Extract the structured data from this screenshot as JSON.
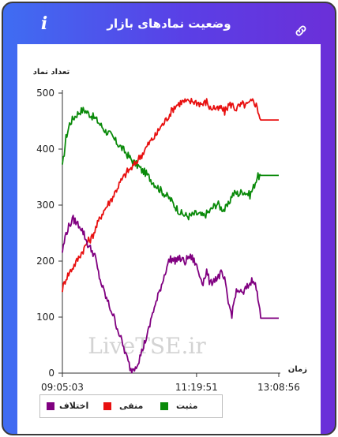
{
  "header": {
    "title": "وضعیت نمادهای بازار",
    "info_icon": "i",
    "link_icon": "link-icon"
  },
  "watermark": "LiveTSE.ir",
  "colors": {
    "positive": "#0a8a0a",
    "negative": "#e81010",
    "difference": "#800080"
  },
  "chart_data": {
    "type": "line",
    "ylabel": "تعداد نماد",
    "xlabel": "زمان",
    "ylim": [
      0,
      500
    ],
    "yticks": [
      0,
      100,
      200,
      300,
      400,
      500
    ],
    "x_range": [
      "09:05:03",
      "13:08:56"
    ],
    "xtick_labels": [
      "09:05:03",
      "11:19:51",
      "13:08:56"
    ],
    "grid": false,
    "legend_position": "bottom-left",
    "series": [
      {
        "name": "مثبت",
        "color": "#0a8a0a",
        "values": [
          367,
          420,
          445,
          455,
          462,
          468,
          470,
          465,
          460,
          455,
          448,
          440,
          432,
          428,
          420,
          412,
          405,
          398,
          390,
          382,
          375,
          370,
          362,
          358,
          350,
          342,
          335,
          328,
          322,
          316,
          310,
          300,
          292,
          285,
          282,
          280,
          282,
          285,
          283,
          280,
          285,
          290,
          298,
          303,
          295,
          292,
          300,
          318,
          322,
          320,
          325,
          322,
          318,
          332,
          350,
          353,
          353,
          353,
          353,
          353,
          353
        ]
      },
      {
        "name": "منفی",
        "color": "#e81010",
        "values": [
          150,
          170,
          180,
          190,
          200,
          212,
          222,
          235,
          240,
          255,
          270,
          285,
          295,
          305,
          315,
          328,
          340,
          350,
          360,
          365,
          372,
          382,
          390,
          400,
          410,
          418,
          425,
          438,
          445,
          455,
          465,
          475,
          480,
          484,
          485,
          483,
          486,
          484,
          482,
          480,
          485,
          472,
          475,
          470,
          474,
          466,
          478,
          480,
          472,
          476,
          480,
          478,
          482,
          487,
          475,
          452,
          452,
          452,
          452,
          452,
          452
        ]
      },
      {
        "name": "اختلاف",
        "color": "#800080",
        "values": [
          217,
          250,
          265,
          275,
          268,
          262,
          248,
          230,
          220,
          210,
          178,
          155,
          137,
          120,
          105,
          85,
          66,
          45,
          25,
          5,
          10,
          20,
          38,
          58,
          78,
          108,
          125,
          148,
          168,
          192,
          205,
          200,
          205,
          203,
          198,
          208,
          205,
          195,
          175,
          162,
          182,
          158,
          168,
          170,
          178,
          165,
          125,
          105,
          142,
          148,
          140,
          152,
          160,
          170,
          143,
          98,
          98,
          98,
          98,
          98,
          98
        ]
      }
    ]
  }
}
